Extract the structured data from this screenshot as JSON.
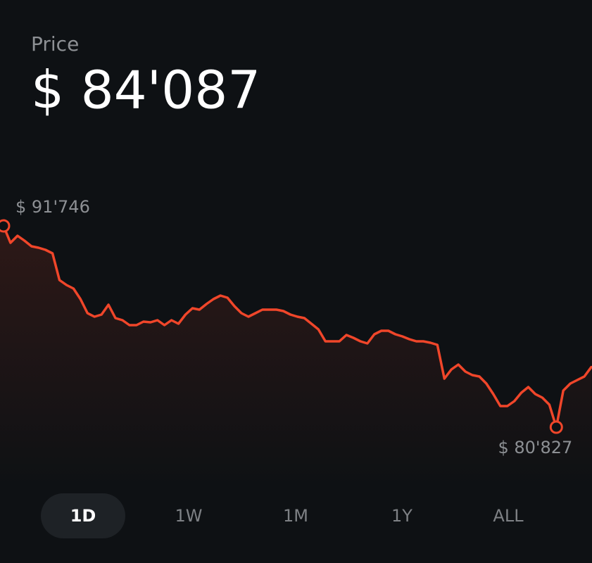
{
  "header": {
    "label": "Price",
    "price": "$ 84'087"
  },
  "chart_data": {
    "type": "line",
    "color": "#f0462a",
    "values": [
      91746,
      90830,
      91211,
      90944,
      90639,
      90562,
      90448,
      90257,
      88806,
      88539,
      88348,
      87775,
      87012,
      86821,
      86935,
      87470,
      86744,
      86630,
      86363,
      86363,
      86554,
      86515,
      86630,
      86363,
      86630,
      86439,
      86935,
      87279,
      87203,
      87508,
      87775,
      87966,
      87852,
      87393,
      87012,
      86821,
      87012,
      87203,
      87203,
      87203,
      87126,
      86935,
      86821,
      86744,
      86439,
      86134,
      85484,
      85484,
      85484,
      85828,
      85675,
      85484,
      85370,
      85866,
      86057,
      86057,
      85866,
      85752,
      85599,
      85484,
      85484,
      85408,
      85294,
      83461,
      83957,
      84225,
      83843,
      83652,
      83575,
      83194,
      82621,
      81972,
      81972,
      82239,
      82697,
      83003,
      82621,
      82430,
      82048,
      80827,
      82812,
      83194,
      83385,
      83575,
      84087
    ],
    "annotations": [
      {
        "value": 91746,
        "label": "$ 91'746"
      },
      {
        "value": 80827,
        "label": "$ 80'827"
      }
    ]
  },
  "tabs": [
    {
      "label": "1D",
      "selected": true
    },
    {
      "label": "1W",
      "selected": false
    },
    {
      "label": "1M",
      "selected": false
    },
    {
      "label": "1Y",
      "selected": false
    },
    {
      "label": "ALL",
      "selected": false
    }
  ]
}
